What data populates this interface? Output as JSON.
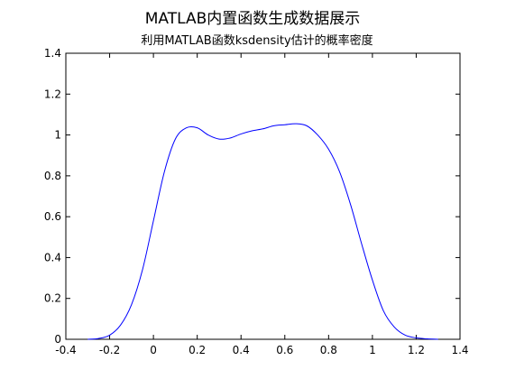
{
  "chart_data": {
    "type": "line",
    "title": "MATLAB内置函数生成数据展示",
    "subtitle": "利用MATLAB函数ksdensity估计的概率密度",
    "xlabel": "",
    "ylabel": "",
    "xlim": [
      -0.4,
      1.4
    ],
    "ylim": [
      0,
      1.4
    ],
    "x_ticks": [
      "-0.4",
      "-0.2",
      "0",
      "0.2",
      "0.4",
      "0.6",
      "0.8",
      "1",
      "1.2",
      "1.4"
    ],
    "y_ticks": [
      "0",
      "0.2",
      "0.4",
      "0.6",
      "0.8",
      "1",
      "1.2",
      "1.4"
    ],
    "grid": false,
    "series": [
      {
        "color": "#0000ff",
        "x": [
          -0.3,
          -0.25,
          -0.2,
          -0.15,
          -0.1,
          -0.05,
          0.0,
          0.05,
          0.1,
          0.15,
          0.2,
          0.25,
          0.3,
          0.35,
          0.4,
          0.45,
          0.5,
          0.55,
          0.6,
          0.65,
          0.7,
          0.75,
          0.8,
          0.85,
          0.9,
          0.95,
          1.0,
          1.05,
          1.1,
          1.15,
          1.2,
          1.25,
          1.3
        ],
        "y": [
          0.0,
          0.004,
          0.02,
          0.07,
          0.17,
          0.34,
          0.58,
          0.82,
          0.98,
          1.035,
          1.035,
          1.0,
          0.98,
          0.985,
          1.005,
          1.02,
          1.03,
          1.045,
          1.05,
          1.055,
          1.045,
          1.0,
          0.93,
          0.82,
          0.66,
          0.47,
          0.29,
          0.14,
          0.06,
          0.02,
          0.007,
          0.002,
          0.0
        ]
      }
    ]
  }
}
